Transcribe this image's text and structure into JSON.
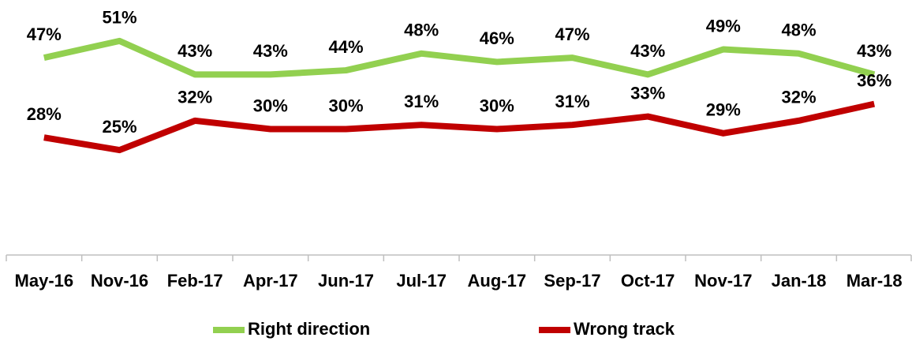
{
  "chart_data": {
    "type": "line",
    "categories": [
      "May-16",
      "Nov-16",
      "Feb-17",
      "Apr-17",
      "Jun-17",
      "Jul-17",
      "Aug-17",
      "Sep-17",
      "Oct-17",
      "Nov-17",
      "Jan-18",
      "Mar-18"
    ],
    "series": [
      {
        "name": "Right direction",
        "color": "#92d050",
        "values": [
          47,
          51,
          43,
          43,
          44,
          48,
          46,
          47,
          43,
          49,
          48,
          43
        ],
        "value_labels": [
          "47%",
          "51%",
          "43%",
          "43%",
          "44%",
          "48%",
          "46%",
          "47%",
          "43%",
          "49%",
          "48%",
          "43%"
        ]
      },
      {
        "name": "Wrong track",
        "color": "#c00000",
        "values": [
          28,
          25,
          32,
          30,
          30,
          31,
          30,
          31,
          33,
          29,
          32,
          36
        ],
        "value_labels": [
          "28%",
          "25%",
          "32%",
          "30%",
          "30%",
          "31%",
          "30%",
          "31%",
          "33%",
          "29%",
          "32%",
          "36%"
        ]
      }
    ],
    "ylim": [
      0,
      60
    ],
    "legend": "bottom"
  }
}
